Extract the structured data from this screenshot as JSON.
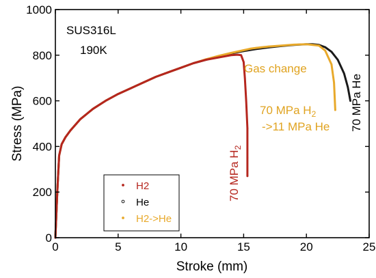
{
  "chart_data": {
    "type": "line",
    "title": "",
    "xlabel": "Stroke (mm)",
    "ylabel": "Stress (MPa)",
    "xlim": [
      0,
      25
    ],
    "ylim": [
      0,
      1000
    ],
    "xticks": [
      0,
      5,
      10,
      15,
      20,
      25
    ],
    "yticks": [
      0,
      200,
      400,
      600,
      800,
      1000
    ],
    "xtick_labels": [
      "0",
      "5",
      "10",
      "15",
      "20",
      "25"
    ],
    "ytick_labels": [
      "0",
      "200",
      "400",
      "600",
      "800",
      "1000"
    ],
    "grid": false,
    "legend_position": "bottom-left",
    "annotations": {
      "material": "SUS316L",
      "temperature": "190K",
      "gas_change": "Gas change",
      "h2_label": "70 MPa H",
      "h2_sub": "2",
      "mixed_label_line1": "70 MPa H",
      "mixed_label_line1_sub": "2",
      "mixed_label_line2": "->11 MPa He",
      "he_label": "70 MPa He"
    },
    "series": [
      {
        "name": "H2",
        "color": "#b5261e",
        "marker": "dot",
        "x": [
          0,
          0.15,
          0.3,
          0.5,
          0.8,
          1.2,
          2,
          3,
          4,
          5,
          6,
          7,
          8,
          9,
          10,
          11,
          12,
          13,
          14,
          14.5,
          14.8,
          15.0,
          15.1,
          15.2,
          15.3,
          15.3,
          15.3
        ],
        "y": [
          0,
          200,
          360,
          410,
          440,
          470,
          520,
          565,
          600,
          630,
          655,
          680,
          705,
          725,
          745,
          765,
          780,
          790,
          800,
          802,
          800,
          770,
          700,
          600,
          480,
          350,
          270
        ]
      },
      {
        "name": "He",
        "color": "#1a1a1a",
        "marker": "circle",
        "x": [
          0,
          0.15,
          0.3,
          0.5,
          0.8,
          1.2,
          2,
          3,
          4,
          5,
          6,
          7,
          8,
          9,
          10,
          11,
          12,
          13,
          14,
          15,
          16,
          17,
          18,
          19,
          20,
          20.5,
          21,
          21.5,
          22,
          22.5,
          23,
          23.3,
          23.5
        ],
        "y": [
          0,
          200,
          360,
          410,
          440,
          470,
          520,
          565,
          600,
          630,
          655,
          680,
          705,
          725,
          745,
          765,
          780,
          795,
          808,
          818,
          827,
          834,
          840,
          845,
          848,
          848,
          845,
          835,
          815,
          780,
          720,
          660,
          600
        ]
      },
      {
        "name": "H2->He",
        "color": "#e8a92b",
        "marker": "dot",
        "x": [
          0,
          0.15,
          0.3,
          0.5,
          0.8,
          1.2,
          2,
          3,
          4,
          5,
          6,
          7,
          8,
          9,
          10,
          11,
          12,
          13,
          14,
          15,
          15.5,
          16,
          17,
          18,
          19,
          20,
          21,
          21.5,
          22,
          22.2,
          22.3
        ],
        "y": [
          0,
          200,
          360,
          410,
          440,
          470,
          520,
          565,
          600,
          630,
          655,
          680,
          705,
          725,
          745,
          765,
          782,
          797,
          810,
          822,
          828,
          832,
          838,
          842,
          846,
          848,
          842,
          820,
          760,
          680,
          560
        ]
      }
    ]
  }
}
